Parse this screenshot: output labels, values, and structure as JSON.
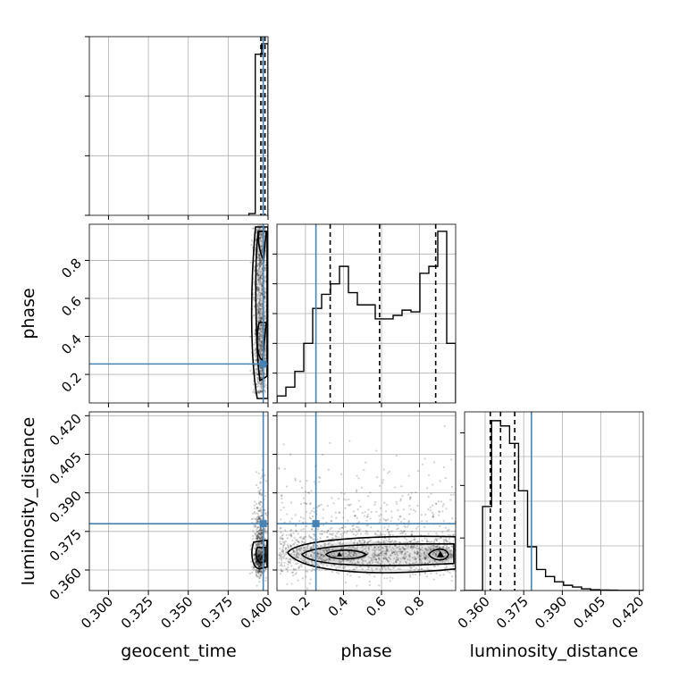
{
  "chart_data": {
    "type": "corner",
    "parameters": [
      "geocent_time",
      "phase",
      "luminosity_distance"
    ],
    "axis_labels": {
      "geocent_time": "geocent_time",
      "phase": "phase",
      "luminosity_distance": "luminosity_distance"
    },
    "ranges": {
      "geocent_time": [
        0.288,
        0.4
      ],
      "phase": [
        0.05,
        0.99
      ],
      "luminosity_distance": [
        0.352,
        0.4215
      ]
    },
    "ticks": {
      "geocent_time": [
        "0.300",
        "0.325",
        "0.350",
        "0.375",
        "0.400"
      ],
      "phase": [
        "0.2",
        "0.4",
        "0.6",
        "0.8"
      ],
      "luminosity_distance": [
        "0.360",
        "0.375",
        "0.390",
        "0.405",
        "0.420"
      ]
    },
    "truths": {
      "geocent_time": 0.397,
      "phase": 0.255,
      "luminosity_distance": 0.378
    },
    "quantiles": {
      "geocent_time": [
        0.3955,
        0.3968,
        0.3981
      ],
      "phase": [
        0.33,
        0.59,
        0.885
      ],
      "luminosity_distance": [
        0.362,
        0.366,
        0.3715
      ]
    },
    "histograms": {
      "geocent_time": {
        "edges": [
          0.388,
          0.392,
          0.396,
          0.4
        ],
        "heights": [
          0.01,
          0.92,
          0.98
        ]
      },
      "phase": {
        "edges": [
          0.05,
          0.097,
          0.144,
          0.191,
          0.238,
          0.285,
          0.332,
          0.379,
          0.426,
          0.473,
          0.52,
          0.567,
          0.614,
          0.661,
          0.708,
          0.755,
          0.802,
          0.849,
          0.896,
          0.943,
          0.99
        ],
        "heights": [
          0.04,
          0.09,
          0.18,
          0.34,
          0.54,
          0.62,
          0.68,
          0.78,
          0.63,
          0.56,
          0.56,
          0.48,
          0.48,
          0.5,
          0.53,
          0.52,
          0.74,
          0.78,
          0.98,
          0.34
        ]
      },
      "luminosity_distance": {
        "edges": [
          0.352,
          0.3555,
          0.359,
          0.3625,
          0.366,
          0.3695,
          0.373,
          0.3765,
          0.38,
          0.3835,
          0.387,
          0.3905,
          0.394,
          0.3975,
          0.401,
          0.4045,
          0.408,
          0.4115,
          0.415,
          0.4185,
          0.4215
        ],
        "heights": [
          0.0,
          0.0,
          0.48,
          0.97,
          0.94,
          0.84,
          0.57,
          0.25,
          0.12,
          0.08,
          0.05,
          0.03,
          0.02,
          0.01,
          0.005,
          0.003,
          0.002,
          0.001,
          0.001,
          0.0
        ]
      }
    },
    "scatter_2d": {
      "phase_vs_geocent_time": {
        "x_center": 0.395,
        "x_spread": 0.003,
        "y_low": 0.1,
        "y_high": 0.98
      },
      "luminosity_distance_vs_geocent_time": {
        "x_center": 0.395,
        "x_spread": 0.003,
        "y_low": 0.36,
        "y_high": 0.41
      },
      "luminosity_distance_vs_phase": {
        "x_low": 0.06,
        "x_high": 0.99,
        "y_center": 0.366,
        "y_high": 0.4
      }
    },
    "colors": {
      "truth": "#4682b4",
      "hist": "#000000",
      "contour": "#000000",
      "grid": "#b0b0b0"
    },
    "grid": true
  }
}
